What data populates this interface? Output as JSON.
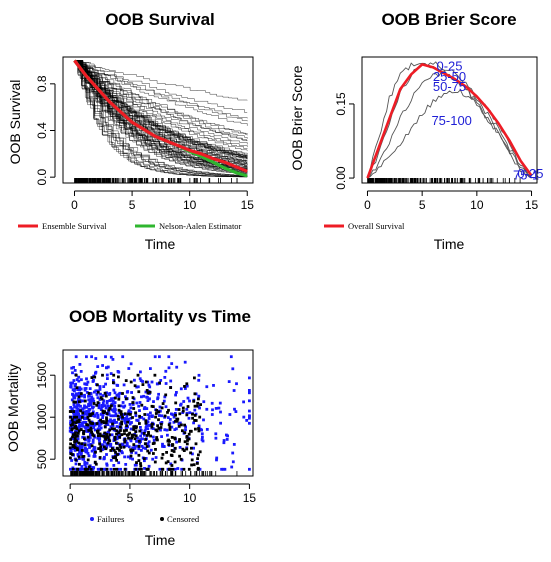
{
  "chart_data": [
    {
      "id": "survival",
      "type": "line",
      "title": "OOB Survival",
      "xlabel": "Time",
      "ylabel": "OOB Survival",
      "xlim": [
        -1,
        15.5
      ],
      "ylim": [
        -0.05,
        1.03
      ],
      "x_ticks": [
        0,
        5,
        10,
        15
      ],
      "y_ticks": [
        0.0,
        0.4,
        0.8
      ],
      "y_tick_labels": [
        "0.0",
        "0.4",
        "0.8"
      ],
      "series": [
        {
          "name": "Ensemble Survival",
          "color": "#ee1c25",
          "x": [
            0,
            1,
            2,
            3,
            4,
            5,
            6,
            7,
            8,
            9,
            10,
            11,
            12,
            13,
            14,
            15
          ],
          "y": [
            1.0,
            0.87,
            0.76,
            0.65,
            0.56,
            0.47,
            0.41,
            0.35,
            0.31,
            0.27,
            0.23,
            0.2,
            0.16,
            0.13,
            0.09,
            0.05
          ]
        },
        {
          "name": "Nelson-Aalen Estimator",
          "color": "#2fb62f",
          "x": [
            0,
            1,
            2,
            3,
            4,
            5,
            6,
            7,
            8,
            9,
            10,
            11,
            12,
            13,
            14,
            15
          ],
          "y": [
            1.0,
            0.87,
            0.76,
            0.65,
            0.56,
            0.47,
            0.41,
            0.35,
            0.31,
            0.27,
            0.22,
            0.18,
            0.13,
            0.08,
            0.04,
            0.01
          ]
        }
      ],
      "bundle": {
        "color": "#000000",
        "count": 70,
        "median_rate": 0.148
      }
    },
    {
      "id": "brier",
      "type": "line",
      "title": "OOB Brier Score",
      "xlabel": "Time",
      "ylabel": "OOB Brier Score",
      "xlim": [
        -0.5,
        15.5
      ],
      "ylim": [
        -0.01,
        0.245
      ],
      "x_ticks": [
        0,
        5,
        10,
        15
      ],
      "y_ticks": [
        0.0,
        0.15
      ],
      "y_tick_labels": [
        "0.00",
        "0.15"
      ],
      "series": [
        {
          "name": "Overall Survival",
          "color": "#ee1c25",
          "x": [
            0,
            1,
            2,
            3,
            4,
            5,
            6,
            7,
            8,
            9,
            10,
            11,
            12,
            13,
            14,
            15
          ],
          "y": [
            0.0,
            0.06,
            0.12,
            0.18,
            0.21,
            0.23,
            0.224,
            0.212,
            0.2,
            0.185,
            0.165,
            0.14,
            0.11,
            0.075,
            0.035,
            0.005
          ]
        }
      ],
      "quartile_curves": [
        {
          "label": "0-25",
          "color": "#555555",
          "x": [
            0,
            1,
            2,
            3,
            4,
            5,
            6,
            7,
            8,
            9,
            10,
            11,
            12,
            13,
            14,
            15
          ],
          "y": [
            0.0,
            0.08,
            0.16,
            0.21,
            0.23,
            0.235,
            0.232,
            0.224,
            0.21,
            0.19,
            0.17,
            0.14,
            0.11,
            0.07,
            0.03,
            0.0
          ]
        },
        {
          "label": "25-50",
          "color": "#555555",
          "x": [
            0,
            1,
            2,
            3,
            4,
            5,
            6,
            7,
            8,
            9,
            10,
            11,
            12,
            13,
            14,
            15
          ],
          "y": [
            0.0,
            0.05,
            0.11,
            0.17,
            0.21,
            0.228,
            0.225,
            0.215,
            0.2,
            0.18,
            0.155,
            0.13,
            0.1,
            0.06,
            0.025,
            0.0
          ]
        },
        {
          "label": "50-75",
          "color": "#555555",
          "x": [
            0,
            1,
            2,
            3,
            4,
            5,
            6,
            7,
            8,
            9,
            10,
            11,
            12,
            13,
            14,
            15
          ],
          "y": [
            0.0,
            0.03,
            0.07,
            0.12,
            0.16,
            0.19,
            0.21,
            0.212,
            0.2,
            0.18,
            0.15,
            0.12,
            0.09,
            0.055,
            0.02,
            0.0
          ]
        },
        {
          "label": "75-100",
          "color": "#555555",
          "x": [
            0,
            1,
            2,
            3,
            4,
            5,
            6,
            7,
            8,
            9,
            10,
            11,
            12,
            13,
            14,
            15
          ],
          "y": [
            0.0,
            0.02,
            0.04,
            0.07,
            0.1,
            0.13,
            0.155,
            0.17,
            0.175,
            0.17,
            0.15,
            0.12,
            0.09,
            0.05,
            0.015,
            0.0
          ]
        }
      ],
      "group_labels": [
        {
          "text": "0-25",
          "x": 7.5,
          "y": 0.228
        },
        {
          "text": "25-50",
          "x": 7.5,
          "y": 0.207
        },
        {
          "text": "50-75",
          "x": 7.5,
          "y": 0.186
        },
        {
          "text": "75-100",
          "x": 7.7,
          "y": 0.118
        },
        {
          "text": "75-1",
          "x": 14.5,
          "y": 0.007
        },
        {
          "text": "0-25",
          "x": 14.9,
          "y": 0.01
        }
      ]
    },
    {
      "id": "mortality",
      "type": "scatter",
      "title": "OOB Mortality vs Time",
      "xlabel": "Time",
      "ylabel": "OOB Mortality",
      "xlim": [
        -0.6,
        15.3
      ],
      "ylim": [
        300,
        1800
      ],
      "x_ticks": [
        0,
        5,
        10,
        15
      ],
      "y_ticks": [
        500,
        1000,
        1500
      ],
      "series": [
        {
          "name": "Failures",
          "color": "#1a1aff",
          "count": 900,
          "time_range": [
            0,
            15
          ],
          "mortality_range": [
            380,
            1720
          ],
          "time_rate": 0.22,
          "mortality_center": 930,
          "mortality_spread": 330
        },
        {
          "name": "Censored",
          "color": "#000000",
          "count": 420,
          "time_range": [
            0,
            11
          ],
          "mortality_range": [
            380,
            1500
          ],
          "mortality_center": 820,
          "mortality_spread": 300
        }
      ]
    }
  ]
}
